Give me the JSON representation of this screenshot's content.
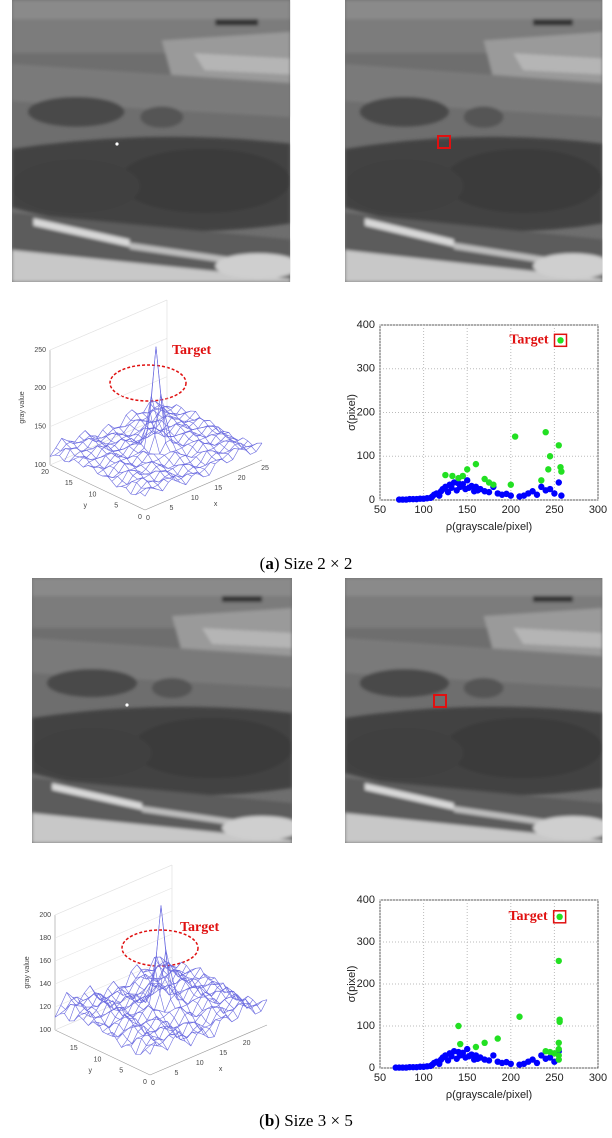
{
  "chart_data": [
    {
      "type": "scatter",
      "xlabel": "ρ(grayscale/pixel)",
      "ylabel": "σ(pixel)",
      "xlim": [
        50,
        300
      ],
      "ylim": [
        0,
        400
      ],
      "xticks": [
        50,
        100,
        150,
        200,
        250,
        300
      ],
      "yticks": [
        0,
        100,
        200,
        300,
        400
      ],
      "grid": true,
      "series": [
        {
          "color": "#0000ff",
          "x": [
            72,
            76,
            80,
            84,
            88,
            92,
            96,
            100,
            104,
            108,
            110,
            112,
            115,
            118,
            120,
            122,
            125,
            128,
            130,
            132,
            135,
            138,
            140,
            142,
            145,
            148,
            150,
            152,
            155,
            158,
            160,
            162,
            165,
            170,
            175,
            180,
            185,
            190,
            195,
            200,
            210,
            215,
            220,
            225,
            230,
            235,
            240,
            245,
            250,
            255,
            258
          ],
          "values": [
            1,
            1,
            1,
            2,
            2,
            2,
            3,
            3,
            4,
            5,
            8,
            12,
            15,
            10,
            20,
            25,
            30,
            18,
            35,
            28,
            40,
            22,
            38,
            30,
            36,
            25,
            45,
            28,
            32,
            20,
            30,
            22,
            25,
            20,
            18,
            30,
            15,
            12,
            14,
            10,
            8,
            10,
            15,
            20,
            12,
            30,
            22,
            25,
            15,
            40,
            10
          ]
        },
        {
          "color": "#22e022",
          "x": [
            125,
            133,
            140,
            145,
            150,
            160,
            170,
            175,
            180,
            200,
            205,
            235,
            240,
            243,
            245,
            255,
            257,
            258
          ],
          "values": [
            57,
            55,
            50,
            55,
            70,
            82,
            48,
            40,
            35,
            35,
            145,
            45,
            155,
            70,
            100,
            125,
            75,
            65
          ]
        }
      ],
      "annotation": {
        "text": "Target",
        "x": 257,
        "y": 365,
        "color": "#22e022",
        "box_color": "#e01010"
      }
    },
    {
      "type": "scatter",
      "xlabel": "ρ(grayscale/pixel)",
      "ylabel": "σ(pixel)",
      "xlim": [
        50,
        300
      ],
      "ylim": [
        0,
        400
      ],
      "xticks": [
        50,
        100,
        150,
        200,
        250,
        300
      ],
      "yticks": [
        0,
        100,
        200,
        300,
        400
      ],
      "grid": true,
      "series": [
        {
          "color": "#0000ff",
          "x": [
            68,
            72,
            76,
            80,
            84,
            88,
            92,
            96,
            100,
            104,
            108,
            110,
            112,
            115,
            118,
            120,
            122,
            125,
            128,
            130,
            132,
            135,
            138,
            140,
            142,
            145,
            148,
            150,
            152,
            155,
            158,
            160,
            162,
            165,
            170,
            175,
            180,
            185,
            190,
            195,
            200,
            210,
            215,
            220,
            225,
            230,
            235,
            240,
            245,
            250,
            255
          ],
          "values": [
            1,
            1,
            1,
            1,
            2,
            2,
            2,
            3,
            3,
            4,
            5,
            8,
            12,
            15,
            10,
            20,
            25,
            30,
            18,
            35,
            28,
            40,
            22,
            38,
            30,
            36,
            25,
            45,
            28,
            32,
            20,
            30,
            22,
            25,
            20,
            18,
            30,
            15,
            12,
            14,
            10,
            8,
            10,
            15,
            20,
            12,
            30,
            22,
            25,
            15,
            40
          ]
        },
        {
          "color": "#22e022",
          "x": [
            140,
            142,
            160,
            170,
            185,
            210,
            240,
            245,
            250,
            255,
            256,
            256,
            255,
            255,
            255,
            255
          ],
          "values": [
            100,
            57,
            50,
            60,
            70,
            122,
            40,
            38,
            35,
            255,
            115,
            110,
            60,
            45,
            30,
            20
          ]
        }
      ],
      "annotation": {
        "text": "Target",
        "x": 256,
        "y": 360,
        "color": "#22e022",
        "box_color": "#e01010"
      }
    }
  ],
  "surface_plots": [
    {
      "zlabel": "gray value",
      "xlabel": "x",
      "ylabel": "y",
      "zlim": [
        100,
        250
      ],
      "zticks": [
        100,
        150,
        200,
        250
      ],
      "xticks": [
        0,
        5,
        10,
        15,
        20,
        25
      ],
      "yticks": [
        0,
        5,
        10,
        15,
        20
      ],
      "annotation": "Target"
    },
    {
      "zlabel": "gray value",
      "xlabel": "x",
      "ylabel": "y",
      "zlim": [
        100,
        200
      ],
      "zticks": [
        100,
        120,
        140,
        160,
        180,
        200
      ],
      "xticks": [
        0,
        5,
        10,
        15,
        20
      ],
      "yticks": [
        0,
        5,
        10,
        15
      ],
      "annotation": "Target"
    }
  ],
  "captions": [
    {
      "open": "(",
      "label": "a",
      "text": ") Size 2 × 2"
    },
    {
      "open": "(",
      "label": "b",
      "text": ") Size 3 × 5"
    }
  ]
}
